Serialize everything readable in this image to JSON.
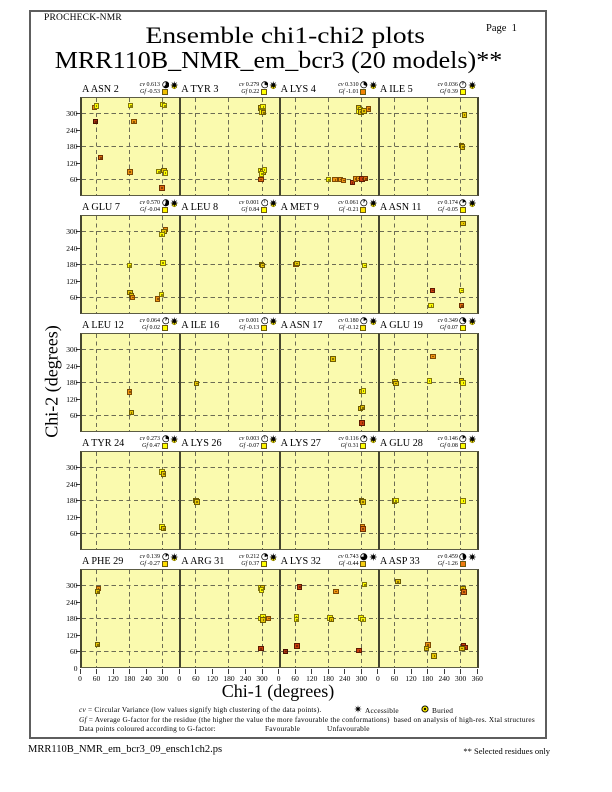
{
  "header": {
    "app_label": "PROCHECK-NMR",
    "page_label": "Page  1"
  },
  "title": "Ensemble chi1-chi2 plots",
  "subtitle": "MRR110B_NMR_em_bcr3 (20 models)**",
  "axes": {
    "x_label": "Chi-1 (degrees)",
    "y_label": "Chi-2 (degrees)",
    "xlim": [
      0,
      360
    ],
    "ylim": [
      0,
      360
    ],
    "x_tick_labels": [
      "0",
      "60",
      "120",
      "180",
      "240",
      "300"
    ],
    "x_end_label": "360",
    "y_tick_labels": [
      "300",
      "240",
      "180",
      "120",
      "60"
    ],
    "y_zero_label": "0",
    "grid_positions": [
      60,
      180,
      300
    ],
    "tick_positions": [
      60,
      120,
      180,
      240,
      300
    ]
  },
  "legend": {
    "line1_prefix": "cv",
    "line1_rest": " = Circular Variance (low values signify high clustering of the data points).",
    "accessible_label": "Accessible",
    "buried_label": "Buried",
    "line2_prefix": "Gf",
    "line2_rest": " = Average G-factor for the residue (the higher the value the more favourable the conformations)  based on analysis of high-res. Xtal structures",
    "line3": "Data points coloured according to G-factor:",
    "favourable_label": "Favourable",
    "unfavourable_label": "Unfavourable"
  },
  "footer": {
    "filename": "MRR110B_NMR_em_bcr3_09_ensch1ch2.ps",
    "note": "** Selected residues only"
  },
  "labels": {
    "cv_prefix": "cv",
    "gf_prefix": "Gf"
  },
  "colors": {
    "plot_bg": "#fafaae",
    "frame": "#4e4e38",
    "gridline": "#6c6c54",
    "favourable_text": "#e8cf00",
    "unfavourable_text": "#cf2e10",
    "point_palette": {
      "y": {
        "fill": "#ffff00",
        "edge": "#84780a"
      },
      "g": {
        "fill": "#e8c702",
        "edge": "#6d5c04"
      },
      "o": {
        "fill": "#ef9310",
        "edge": "#7e4a04"
      },
      "O": {
        "fill": "#e06c10",
        "edge": "#6e3002"
      },
      "r": {
        "fill": "#cc3d0e",
        "edge": "#5e1a02"
      },
      "R": {
        "fill": "#a62f12",
        "edge": "#4a1000"
      }
    }
  },
  "chart_data": {
    "type": "scatter",
    "grid": {
      "rows": 5,
      "cols": 4
    },
    "xlim": [
      0,
      360
    ],
    "ylim": [
      0,
      360
    ],
    "subplots": [
      {
        "residue": "A ASN 2",
        "cv": "0.613",
        "gf": "-0.53",
        "cv_value": 0.613,
        "access": "mixed",
        "gf_color": "#f0c000",
        "points": [
          [
            52,
            321,
            "o"
          ],
          [
            59,
            327,
            "y"
          ],
          [
            57,
            270,
            "R"
          ],
          [
            183,
            329,
            "y"
          ],
          [
            196,
            270,
            "o"
          ],
          [
            299,
            332,
            "y"
          ],
          [
            306,
            328,
            "y"
          ],
          [
            74,
            140,
            "O"
          ],
          [
            181,
            87,
            "o"
          ],
          [
            284,
            89,
            "y"
          ],
          [
            304,
            92,
            "g"
          ],
          [
            309,
            84,
            "y"
          ],
          [
            297,
            29,
            "O"
          ]
        ]
      },
      {
        "residue": "A TYR 3",
        "cv": "0.279",
        "gf": "0.22",
        "cv_value": 0.279,
        "access": "mixed",
        "gf_color": "#ffff00",
        "points": [
          [
            295,
            320,
            "g"
          ],
          [
            304,
            324,
            "y"
          ],
          [
            300,
            312,
            "y"
          ],
          [
            297,
            306,
            "y"
          ],
          [
            305,
            303,
            "g"
          ],
          [
            295,
            92,
            "y"
          ],
          [
            304,
            87,
            "g"
          ],
          [
            308,
            95,
            "y"
          ],
          [
            299,
            80,
            "y"
          ],
          [
            296,
            61,
            "O"
          ]
        ]
      },
      {
        "residue": "A LYS 4",
        "cv": "0.310",
        "gf": "-1.01",
        "cv_value": 0.31,
        "access": "mixed",
        "gf_color": "#f08404",
        "points": [
          [
            289,
            320,
            "g"
          ],
          [
            297,
            315,
            "y"
          ],
          [
            290,
            307,
            "y"
          ],
          [
            299,
            305,
            "g"
          ],
          [
            309,
            309,
            "g"
          ],
          [
            326,
            317,
            "o"
          ],
          [
            181,
            59,
            "y"
          ],
          [
            205,
            60,
            "o"
          ],
          [
            225,
            61,
            "o"
          ],
          [
            236,
            57,
            "o"
          ],
          [
            267,
            48,
            "r"
          ],
          [
            279,
            62,
            "o"
          ],
          [
            291,
            64,
            "o"
          ],
          [
            303,
            62,
            "r"
          ],
          [
            316,
            63,
            "O"
          ]
        ]
      },
      {
        "residue": "A ILE 5",
        "cv": "0.036",
        "gf": "0.39",
        "cv_value": 0.036,
        "access": "mixed",
        "gf_color": "#ffff00",
        "points": [
          [
            313,
            295,
            "g"
          ],
          [
            303,
            184,
            "g"
          ],
          [
            307,
            178,
            "g"
          ]
        ]
      },
      {
        "residue": "A GLU 7",
        "cv": "0.570",
        "gf": "-0.04",
        "cv_value": 0.57,
        "access": "mixed",
        "gf_color": "#fff600",
        "points": [
          [
            310,
            308,
            "o"
          ],
          [
            305,
            300,
            "g"
          ],
          [
            297,
            288,
            "y"
          ],
          [
            180,
            176,
            "y"
          ],
          [
            301,
            185,
            "y"
          ],
          [
            181,
            78,
            "g"
          ],
          [
            186,
            68,
            "g"
          ],
          [
            191,
            61,
            "o"
          ],
          [
            295,
            70,
            "y"
          ],
          [
            282,
            55,
            "o"
          ]
        ]
      },
      {
        "residue": "A LEU 8",
        "cv": "0.001",
        "gf": "0.84",
        "cv_value": 0.001,
        "access": "mixed",
        "gf_color": "#ffff00",
        "points": [
          [
            298,
            180,
            "g"
          ],
          [
            301,
            177,
            "g"
          ]
        ]
      },
      {
        "residue": "A MET 9",
        "cv": "0.061",
        "gf": "-0.21",
        "cv_value": 0.061,
        "access": "mixed",
        "gf_color": "#ffe400",
        "points": [
          [
            63,
            181,
            "o"
          ],
          [
            67,
            184,
            "g"
          ],
          [
            312,
            177,
            "y"
          ]
        ]
      },
      {
        "residue": "A ASN 11",
        "cv": "0.174",
        "gf": "-0.05",
        "cv_value": 0.174,
        "access": "mixed",
        "gf_color": "#fff600",
        "points": [
          [
            309,
            330,
            "g"
          ],
          [
            199,
            86,
            "r"
          ],
          [
            304,
            86,
            "y"
          ],
          [
            193,
            30,
            "y"
          ],
          [
            304,
            30,
            "O"
          ]
        ]
      },
      {
        "residue": "A LEU 12",
        "cv": "0.064",
        "gf": "0.02",
        "cv_value": 0.064,
        "access": "mixed",
        "gf_color": "#ffff00",
        "points": [
          [
            179,
            146,
            "o"
          ],
          [
            186,
            70,
            "g"
          ]
        ]
      },
      {
        "residue": "A ILE 16",
        "cv": "0.001",
        "gf": "-0.13",
        "cv_value": 0.001,
        "access": "mixed",
        "gf_color": "#ffec00",
        "points": [
          [
            63,
            177,
            "g"
          ]
        ]
      },
      {
        "residue": "A ASN 17",
        "cv": "0.180",
        "gf": "-0.12",
        "cv_value": 0.18,
        "access": "mixed",
        "gf_color": "#ffec00",
        "points": [
          [
            197,
            266,
            "g"
          ],
          [
            301,
            148,
            "g"
          ],
          [
            307,
            149,
            "y"
          ],
          [
            298,
            86,
            "g"
          ],
          [
            305,
            88,
            "g"
          ],
          [
            303,
            33,
            "r"
          ]
        ]
      },
      {
        "residue": "A GLU 19",
        "cv": "0.349",
        "gf": "0.07",
        "cv_value": 0.349,
        "access": "mixed",
        "gf_color": "#ffff00",
        "points": [
          [
            200,
            275,
            "o"
          ],
          [
            62,
            184,
            "g"
          ],
          [
            66,
            177,
            "g"
          ],
          [
            186,
            185,
            "y"
          ],
          [
            304,
            185,
            "g"
          ],
          [
            309,
            178,
            "y"
          ]
        ]
      },
      {
        "residue": "A TYR 24",
        "cv": "0.273",
        "gf": "0.47",
        "cv_value": 0.273,
        "access": "mixed",
        "gf_color": "#ffff00",
        "points": [
          [
            297,
            283,
            "y"
          ],
          [
            303,
            277,
            "g"
          ],
          [
            298,
            84,
            "y"
          ],
          [
            303,
            78,
            "g"
          ]
        ]
      },
      {
        "residue": "A LYS 26",
        "cv": "0.003",
        "gf": "-0.07",
        "cv_value": 0.003,
        "access": "mixed",
        "gf_color": "#fff400",
        "points": [
          [
            61,
            181,
            "g"
          ],
          [
            64,
            175,
            "g"
          ]
        ]
      },
      {
        "residue": "A LYS 27",
        "cv": "0.116",
        "gf": "0.31",
        "cv_value": 0.116,
        "access": "mixed",
        "gf_color": "#ffff00",
        "points": [
          [
            301,
            180,
            "g"
          ],
          [
            306,
            174,
            "g"
          ],
          [
            305,
            85,
            "o"
          ],
          [
            306,
            76,
            "O"
          ]
        ]
      },
      {
        "residue": "A GLU 28",
        "cv": "0.146",
        "gf": "0.08",
        "cv_value": 0.146,
        "access": "mixed",
        "gf_color": "#ffff00",
        "points": [
          [
            60,
            178,
            "g"
          ],
          [
            65,
            180,
            "y"
          ],
          [
            309,
            178,
            "y"
          ]
        ]
      },
      {
        "residue": "A PHE 29",
        "cv": "0.139",
        "gf": "-0.27",
        "cv_value": 0.139,
        "access": "mixed",
        "gf_color": "#ffde00",
        "points": [
          [
            66,
            288,
            "o"
          ],
          [
            63,
            278,
            "g"
          ],
          [
            63,
            85,
            "g"
          ]
        ]
      },
      {
        "residue": "A ARG 31",
        "cv": "0.212",
        "gf": "0.37",
        "cv_value": 0.212,
        "access": "mixed",
        "gf_color": "#ffff00",
        "points": [
          [
            294,
            291,
            "y"
          ],
          [
            301,
            293,
            "g"
          ],
          [
            299,
            284,
            "y"
          ],
          [
            296,
            180,
            "y"
          ],
          [
            304,
            186,
            "y"
          ],
          [
            304,
            174,
            "g"
          ],
          [
            324,
            181,
            "o"
          ],
          [
            296,
            70,
            "r"
          ]
        ]
      },
      {
        "residue": "A LYS 32",
        "cv": "0.743",
        "gf": "-0.44",
        "cv_value": 0.743,
        "access": "accessible",
        "gf_color": "#f6cc10",
        "points": [
          [
            76,
            294,
            "r"
          ],
          [
            208,
            279,
            "o"
          ],
          [
            312,
            303,
            "y"
          ],
          [
            64,
            186,
            "y"
          ],
          [
            66,
            176,
            "y"
          ],
          [
            187,
            182,
            "y"
          ],
          [
            191,
            176,
            "g"
          ],
          [
            299,
            182,
            "y"
          ],
          [
            306,
            176,
            "y"
          ],
          [
            67,
            80,
            "r"
          ],
          [
            25,
            61,
            "R"
          ],
          [
            292,
            63,
            "r"
          ]
        ]
      },
      {
        "residue": "A ASP 33",
        "cv": "0.459",
        "gf": "-1.26",
        "cv_value": 0.459,
        "access": "accessible",
        "gf_color": "#ee7a10",
        "points": [
          [
            73,
            314,
            "g"
          ],
          [
            308,
            290,
            "g"
          ],
          [
            312,
            277,
            "O"
          ],
          [
            181,
            84,
            "o"
          ],
          [
            177,
            72,
            "g"
          ],
          [
            204,
            44,
            "g"
          ],
          [
            310,
            81,
            "r"
          ],
          [
            316,
            74,
            "r"
          ],
          [
            305,
            72,
            "g"
          ]
        ]
      }
    ]
  }
}
